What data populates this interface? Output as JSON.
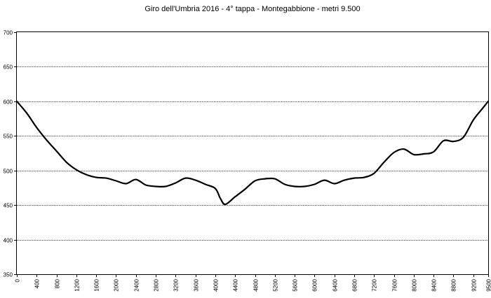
{
  "chart_data": {
    "type": "line",
    "title": "Giro dell'Umbria  2016  - 4° tappa  - Montegabbione  - metri 9.500",
    "xlabel": "",
    "ylabel": "",
    "xlim": [
      0,
      9500
    ],
    "ylim": [
      350,
      700
    ],
    "grid": true,
    "yticks": [
      350,
      400,
      450,
      500,
      550,
      600,
      650,
      700
    ],
    "xticks": [
      0,
      400,
      800,
      1200,
      1600,
      2000,
      2400,
      2800,
      3200,
      3600,
      4000,
      4400,
      4800,
      5200,
      5600,
      6000,
      6400,
      6800,
      7200,
      7600,
      8000,
      8400,
      8800,
      9200,
      9500
    ],
    "series": [
      {
        "name": "",
        "color": "#000000",
        "x": [
          0,
          200,
          400,
          600,
          800,
          1000,
          1200,
          1400,
          1600,
          1800,
          2000,
          2200,
          2400,
          2600,
          2800,
          3000,
          3200,
          3400,
          3600,
          3800,
          4000,
          4100,
          4200,
          4400,
          4600,
          4800,
          5000,
          5200,
          5400,
          5600,
          5800,
          6000,
          6200,
          6400,
          6600,
          6800,
          7000,
          7200,
          7400,
          7600,
          7800,
          8000,
          8200,
          8400,
          8600,
          8800,
          9000,
          9200,
          9400,
          9500
        ],
        "y": [
          600,
          583,
          562,
          544,
          528,
          512,
          501,
          494,
          490,
          489,
          485,
          481,
          487,
          479,
          477,
          477,
          482,
          489,
          486,
          480,
          474,
          460,
          451,
          462,
          473,
          485,
          488,
          488,
          480,
          477,
          477,
          480,
          486,
          481,
          486,
          489,
          490,
          496,
          512,
          526,
          531,
          523,
          524,
          527,
          543,
          542,
          548,
          573,
          591,
          600
        ]
      }
    ]
  }
}
